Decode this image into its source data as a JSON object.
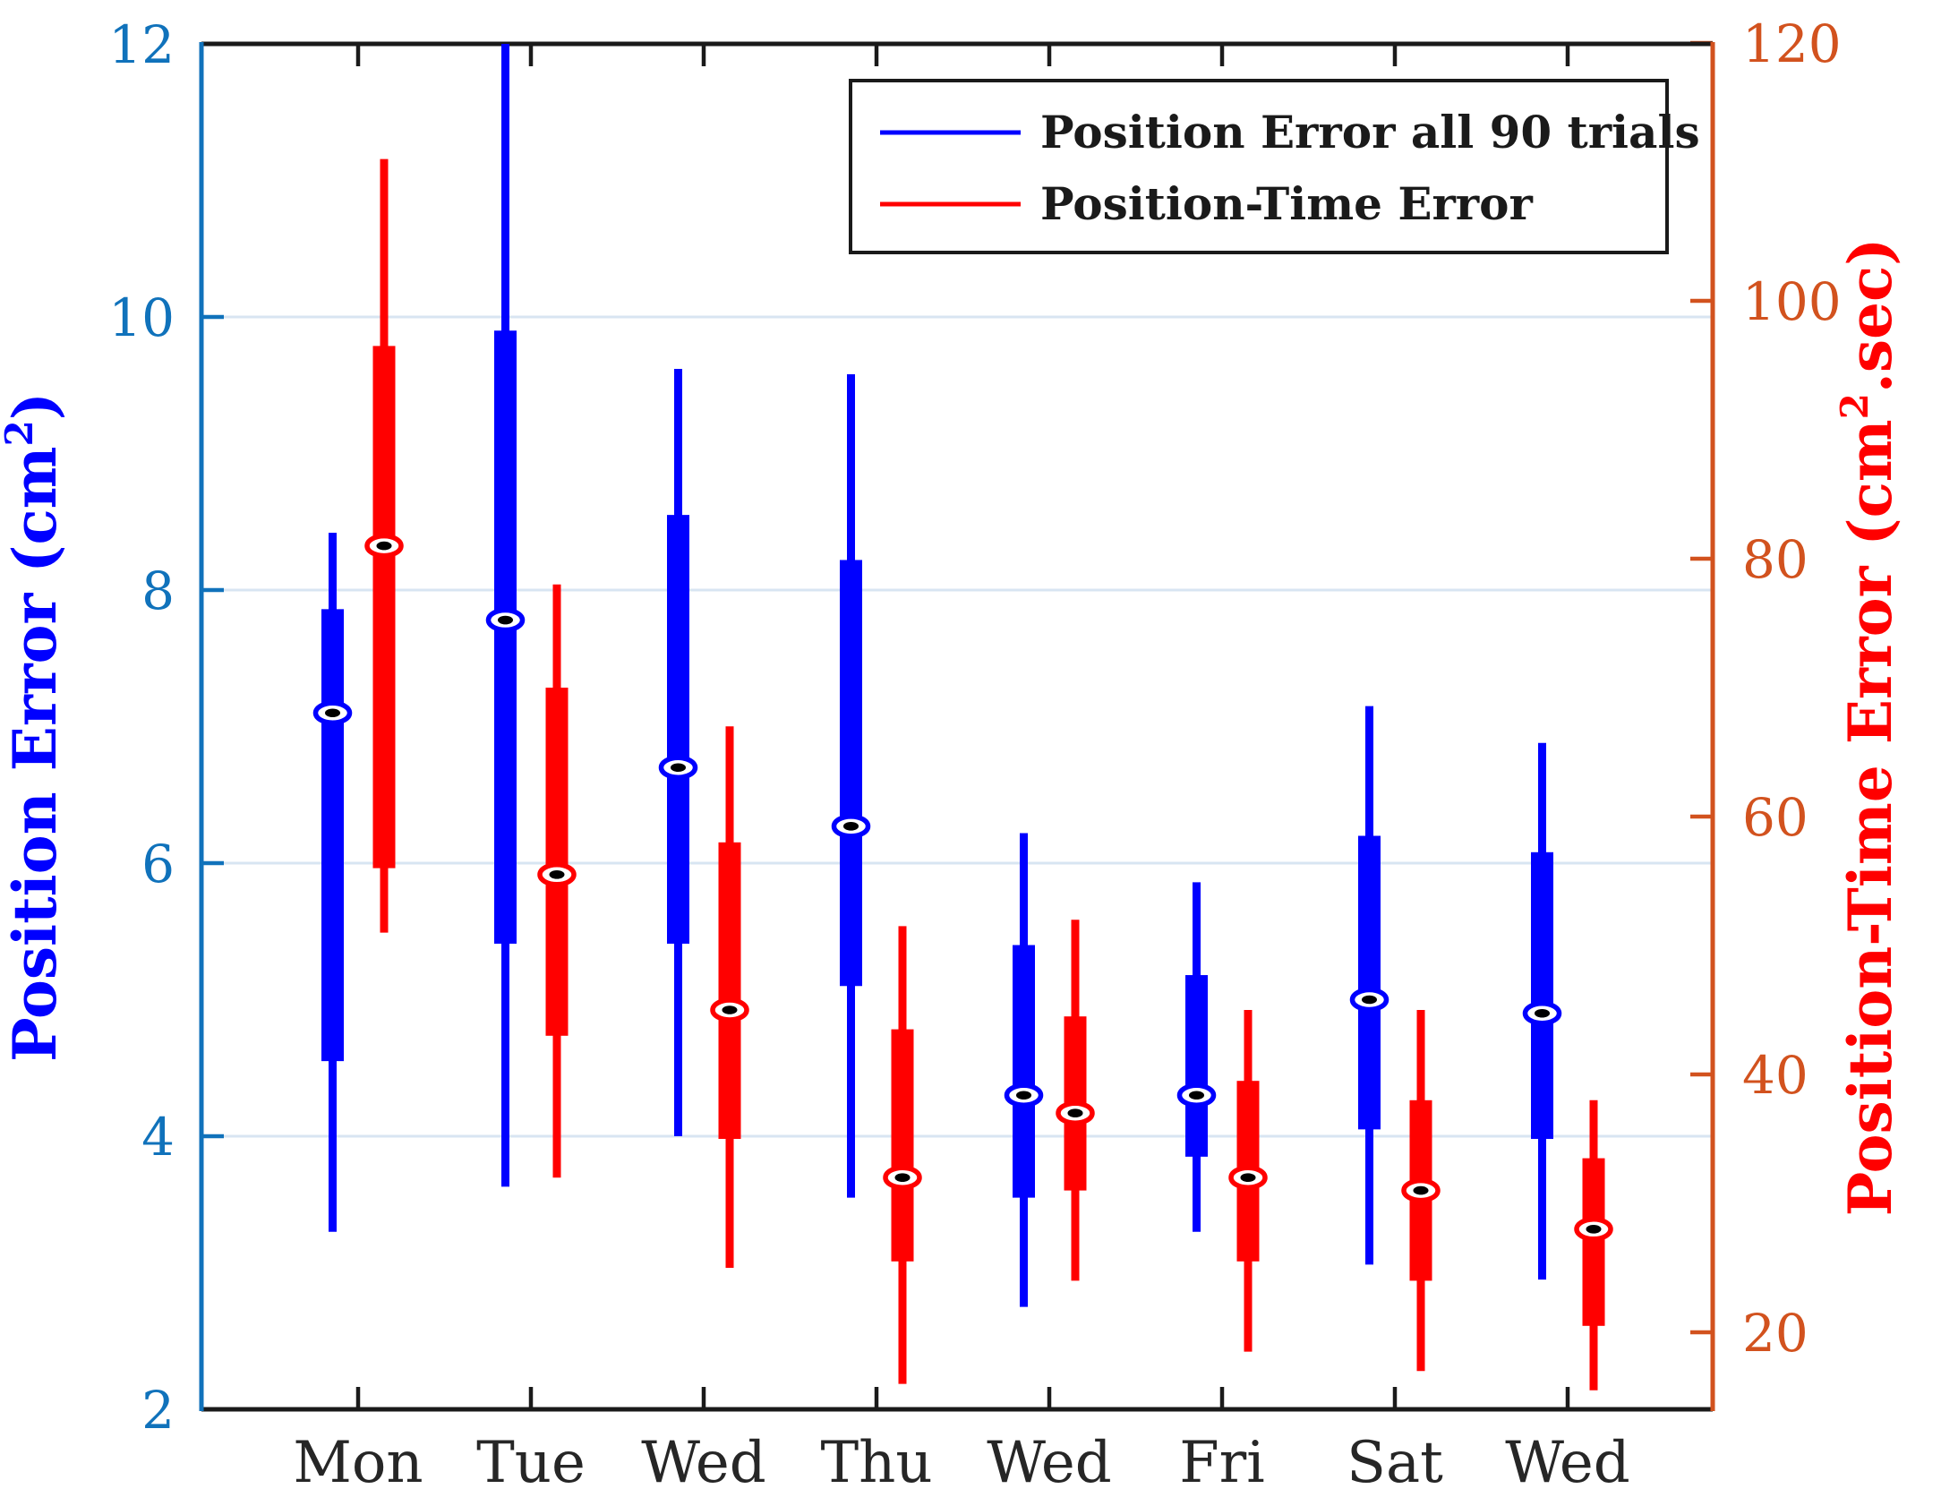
{
  "chart_data": {
    "type": "boxplot",
    "dual_axis": true,
    "categories": [
      "Mon",
      "Tue",
      "Wed",
      "Thu",
      "Wed",
      "Fri",
      "Sat",
      "Wed"
    ],
    "left_axis": {
      "label_full": "Position Error (cm²)",
      "label_pre": "Position Error (cm",
      "label_sup": "2",
      "label_post": ")",
      "ticks": [
        2,
        4,
        6,
        8,
        10,
        12
      ],
      "min": 2,
      "max": 12,
      "tick_color": "#1072BB",
      "label_color": "#0000FF"
    },
    "right_axis": {
      "label_full": "Position-Time Error (cm².sec)",
      "label_pre": "Position-Time Error (cm",
      "label_sup": "2",
      "label_post": ".sec)",
      "ticks": [
        20,
        40,
        60,
        80,
        100,
        120
      ],
      "min": 14,
      "max": 120.1,
      "tick_color": "#D2521E",
      "label_color": "#FF0000"
    },
    "series": [
      {
        "name": "Position Error all 90 trials",
        "color": "#0000FF",
        "axis": "left",
        "boxes": [
          {
            "low": 3.3,
            "q1": 4.55,
            "median": 7.1,
            "q3": 7.86,
            "high": 8.42
          },
          {
            "low": 3.63,
            "q1": 5.41,
            "median": 7.78,
            "q3": 9.9,
            "high": 12.4
          },
          {
            "low": 4.0,
            "q1": 5.41,
            "median": 6.7,
            "q3": 8.55,
            "high": 9.62
          },
          {
            "low": 3.55,
            "q1": 5.1,
            "median": 6.27,
            "q3": 8.22,
            "high": 9.58
          },
          {
            "low": 2.75,
            "q1": 3.55,
            "median": 4.3,
            "q3": 5.4,
            "high": 6.22
          },
          {
            "low": 3.3,
            "q1": 3.85,
            "median": 4.3,
            "q3": 5.18,
            "high": 5.86
          },
          {
            "low": 3.06,
            "q1": 4.05,
            "median": 5.0,
            "q3": 6.2,
            "high": 7.15
          },
          {
            "low": 2.95,
            "q1": 3.98,
            "median": 4.9,
            "q3": 6.08,
            "high": 6.88
          }
        ]
      },
      {
        "name": "Position-Time Error",
        "color": "#FF0000",
        "axis": "right",
        "boxes": [
          {
            "low": 51.0,
            "q1": 56.0,
            "median": 81.0,
            "q3": 96.5,
            "high": 111.0
          },
          {
            "low": 32.0,
            "q1": 43.0,
            "median": 55.5,
            "q3": 70.0,
            "high": 78.0
          },
          {
            "low": 25.0,
            "q1": 35.0,
            "median": 45.0,
            "q3": 58.0,
            "high": 67.0
          },
          {
            "low": 16.0,
            "q1": 25.5,
            "median": 32.0,
            "q3": 43.5,
            "high": 51.5
          },
          {
            "low": 24.0,
            "q1": 31.0,
            "median": 37.0,
            "q3": 44.5,
            "high": 52.0
          },
          {
            "low": 18.5,
            "q1": 25.5,
            "median": 32.0,
            "q3": 39.5,
            "high": 45.0
          },
          {
            "low": 17.0,
            "q1": 24.0,
            "median": 31.0,
            "q3": 38.0,
            "high": 45.0
          },
          {
            "low": 15.5,
            "q1": 20.5,
            "median": 28.0,
            "q3": 33.5,
            "high": 38.0
          }
        ]
      }
    ],
    "grid": {
      "horizontal_at_left_values": [
        4,
        6,
        8,
        10
      ],
      "color": "#D8E5F2"
    },
    "frame_color": "#1A1A1A",
    "x_tick_label_color": "#262626",
    "legend_position": "top-right"
  }
}
